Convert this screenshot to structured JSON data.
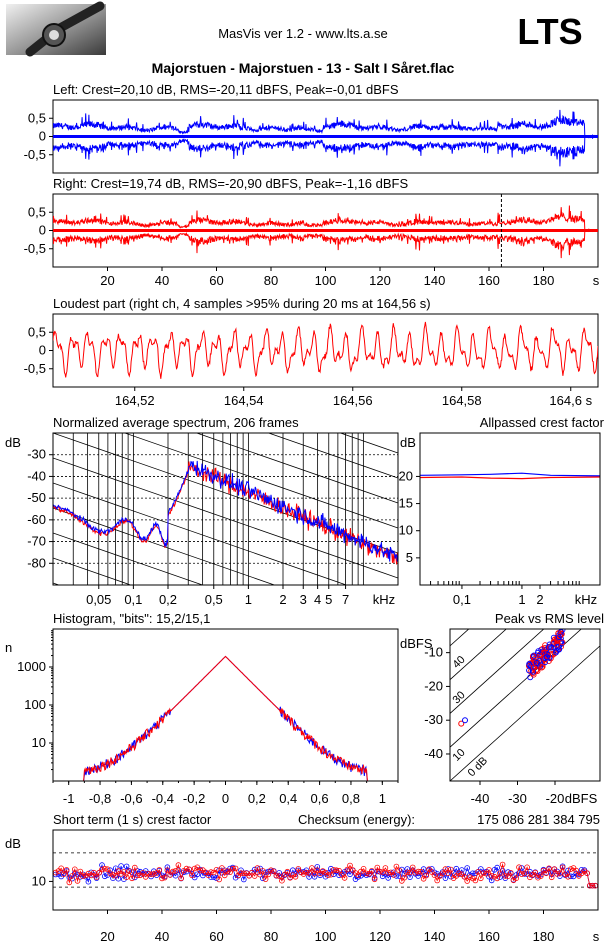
{
  "header": {
    "app_title": "MasVis ver 1.2 - www.lts.a.se",
    "brand": "LTS",
    "track_title": "Majorstuen - Majorstuen - 13 - Salt I Såret.flac",
    "logo_icon": "audio-cable-photo-icon"
  },
  "colors": {
    "left": "#0000ff",
    "right": "#ff0000",
    "axis": "#000000"
  },
  "chart_data": [
    {
      "type": "line",
      "title": "Left: Crest=20,10 dB, RMS=-20,11 dBFS, Peak=-0,01 dBFS",
      "series": [
        {
          "channel": "left",
          "color": "#0000ff"
        }
      ],
      "ylim": [
        -1,
        1
      ],
      "y_ticks": [
        0.5,
        0,
        -0.5
      ],
      "y_tick_labels": [
        "0,5",
        "0",
        "-0,5"
      ],
      "xlim": [
        0,
        200
      ]
    },
    {
      "type": "line",
      "title": "Right: Crest=19,74 dB, RMS=-20,90 dBFS, Peak=-1,16 dBFS",
      "series": [
        {
          "channel": "right",
          "color": "#ff0000"
        }
      ],
      "ylim": [
        -1,
        1
      ],
      "y_ticks": [
        0.5,
        0,
        -0.5
      ],
      "y_tick_labels": [
        "0,5",
        "0",
        "-0,5"
      ],
      "xlim": [
        0,
        200
      ],
      "x_ticks": [
        20,
        40,
        60,
        80,
        100,
        120,
        140,
        160,
        180
      ],
      "x_tick_labels": [
        "20",
        "40",
        "60",
        "80",
        "100",
        "120",
        "140",
        "160",
        "180"
      ],
      "xunit": "s",
      "marker_at": 164.56
    },
    {
      "type": "line",
      "title": "Loudest part (right ch, 4 samples >95% during 20 ms at 164,56 s)",
      "series": [
        {
          "channel": "right",
          "color": "#ff0000"
        }
      ],
      "ylim": [
        -1,
        1
      ],
      "y_ticks": [
        0.5,
        0,
        -0.5
      ],
      "y_tick_labels": [
        "0,5",
        "0",
        "-0,5"
      ],
      "xlim": [
        164.505,
        164.605
      ],
      "x_ticks": [
        164.52,
        164.54,
        164.56,
        164.58,
        164.6
      ],
      "x_tick_labels": [
        "164,52",
        "164,54",
        "164,56",
        "164,58",
        "164,6 s"
      ]
    },
    {
      "type": "line",
      "title": "Normalized average spectrum, 206 frames",
      "ylabel": "dB",
      "xunit": "kHz",
      "xscale": "log",
      "xlim": [
        0.02,
        20
      ],
      "ylim": [
        -90,
        -20
      ],
      "y_ticks": [
        -30,
        -40,
        -50,
        -60,
        -70,
        -80
      ],
      "y_tick_labels": [
        "-30",
        "-40",
        "-50",
        "-60",
        "-70",
        "-80"
      ],
      "x_ticks": [
        0.05,
        0.1,
        0.2,
        0.5,
        1,
        2,
        3,
        4,
        5,
        7
      ],
      "x_tick_labels": [
        "0,05",
        "0,1",
        "0,2",
        "0,5",
        "1",
        "2",
        "3",
        "4",
        "5",
        "7"
      ],
      "grid": true
    },
    {
      "type": "line",
      "title": "Allpassed crest factor",
      "ylabel": "dB",
      "xunit": "kHz",
      "xscale": "log",
      "xlim": [
        0.02,
        20
      ],
      "ylim": [
        0,
        28
      ],
      "y_ticks": [
        20,
        15,
        10,
        5
      ],
      "y_tick_labels": [
        "20",
        "15",
        "10",
        "5"
      ],
      "x_ticks": [
        0.1,
        1,
        2
      ],
      "x_tick_labels": [
        "0,1",
        "1",
        "2"
      ],
      "series": [
        {
          "channel": "left",
          "color": "#0000ff",
          "x": [
            0.02,
            0.1,
            0.3,
            1,
            3,
            20
          ],
          "y": [
            20.2,
            20.3,
            20.4,
            20.6,
            20.2,
            20.1
          ]
        },
        {
          "channel": "right",
          "color": "#ff0000",
          "x": [
            0.02,
            0.1,
            0.3,
            1,
            3,
            20
          ],
          "y": [
            19.8,
            19.9,
            19.7,
            19.6,
            19.8,
            19.9
          ]
        }
      ]
    },
    {
      "type": "line",
      "title": "Histogram, \"bits\": 15,2/15,1",
      "ylabel": "n",
      "yscale": "log",
      "xlim": [
        -1.1,
        1.1
      ],
      "ylim": [
        1,
        10000
      ],
      "y_ticks": [
        1000,
        100,
        10
      ],
      "y_tick_labels": [
        "1000",
        "100",
        "10"
      ],
      "x_ticks": [
        -1,
        -0.8,
        -0.6,
        -0.4,
        -0.2,
        0,
        0.2,
        0.4,
        0.6,
        0.8,
        1
      ],
      "x_tick_labels": [
        "-1",
        "-0,8",
        "-0,6",
        "-0,4",
        "-0,2",
        "0",
        "0,2",
        "0,4",
        "0,6",
        "0,8",
        "1"
      ],
      "peak": 1900
    },
    {
      "type": "scatter",
      "title": "Peak vs RMS level",
      "ylabel": "dBFS",
      "xlabel": "dBFS",
      "xlim": [
        -48,
        -8
      ],
      "ylim": [
        -48,
        -3
      ],
      "x_ticks": [
        -40,
        -30,
        -20
      ],
      "x_tick_labels": [
        "-40",
        "-30",
        "-20"
      ],
      "y_ticks": [
        -10,
        -20,
        -30,
        -40
      ],
      "y_tick_labels": [
        "-10",
        "-20",
        "-30",
        "-40"
      ],
      "diagonal_labels": [
        "40",
        "30",
        "10",
        "0 dB"
      ]
    },
    {
      "type": "scatter",
      "title": "Short term (1 s) crest factor",
      "ylabel": "dB",
      "checksum_label": "Checksum (energy):",
      "checksum_value": "175 086 281 384 795",
      "xlim": [
        0,
        200
      ],
      "ylim": [
        0,
        28
      ],
      "y_ticks": [
        10
      ],
      "y_tick_labels": [
        "10"
      ],
      "x_ticks": [
        20,
        40,
        60,
        80,
        100,
        120,
        140,
        160,
        180
      ],
      "x_tick_labels": [
        "20",
        "40",
        "60",
        "80",
        "100",
        "120",
        "140",
        "160",
        "180"
      ],
      "xunit": "s"
    }
  ]
}
